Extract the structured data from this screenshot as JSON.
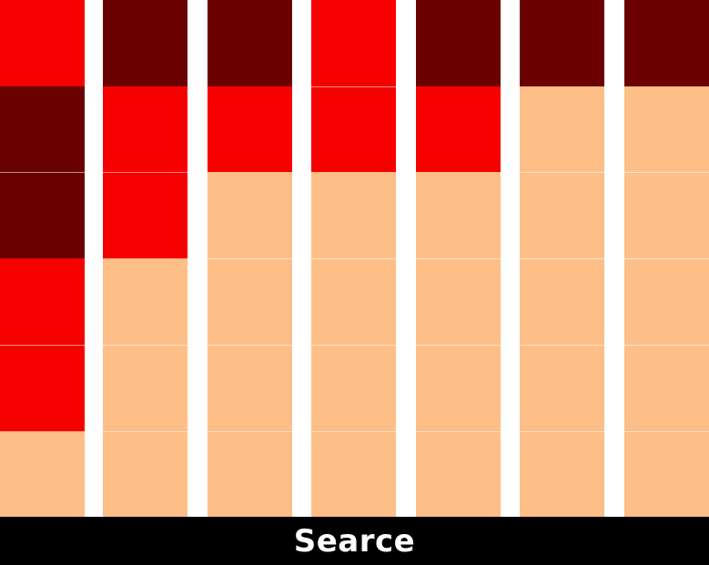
{
  "colors": {
    "dark_red": "#6b0000",
    "red": "#f60000",
    "peach": "#fdbe88",
    "background": "#ffffff",
    "footer_bg": "#000000",
    "footer_text": "#ffffff"
  },
  "grid": {
    "rows": 6,
    "columns": [
      {
        "cells": [
          "red",
          "dark_red",
          "dark_red",
          "red",
          "red",
          "peach"
        ]
      },
      {
        "cells": [
          "dark_red",
          "red",
          "red",
          "peach",
          "peach",
          "peach"
        ]
      },
      {
        "cells": [
          "dark_red",
          "red",
          "peach",
          "peach",
          "peach",
          "peach"
        ]
      },
      {
        "cells": [
          "red",
          "red",
          "peach",
          "peach",
          "peach",
          "peach"
        ]
      },
      {
        "cells": [
          "dark_red",
          "red",
          "peach",
          "peach",
          "peach",
          "peach"
        ]
      },
      {
        "cells": [
          "dark_red",
          "peach",
          "peach",
          "peach",
          "peach",
          "peach"
        ]
      },
      {
        "cells": [
          "dark_red",
          "peach",
          "peach",
          "peach",
          "peach",
          "peach"
        ]
      }
    ]
  },
  "footer": {
    "label": "Searce"
  }
}
